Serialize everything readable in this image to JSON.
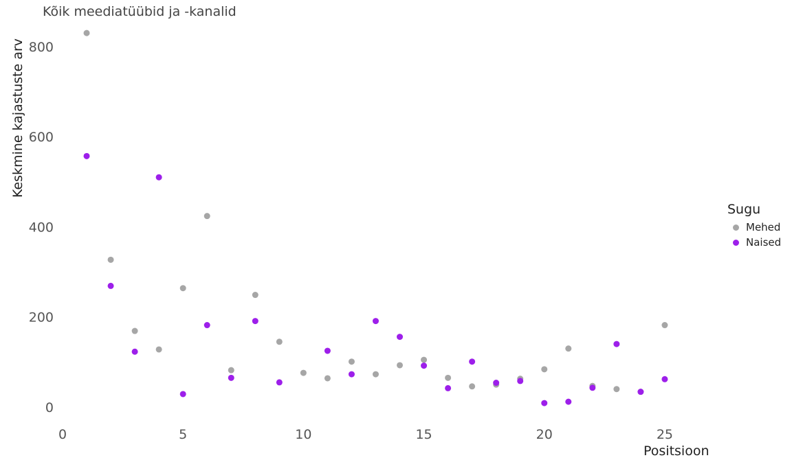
{
  "chart_data": {
    "type": "scatter",
    "title": "Kõik meediatüübid ja -kanalid",
    "xlabel": "Positsioon",
    "ylabel": "Keskmine kajastuste arv",
    "xlim": [
      0,
      27
    ],
    "ylim": [
      0,
      850
    ],
    "x_ticks": [
      0,
      5,
      10,
      15,
      20,
      25
    ],
    "y_ticks": [
      0,
      200,
      400,
      600,
      800
    ],
    "grid": false,
    "legend": {
      "title": "Sugu",
      "placement": "right"
    },
    "series": [
      {
        "name": "Mehed",
        "color": "#a6a6a6",
        "x": [
          1,
          2,
          3,
          4,
          5,
          6,
          7,
          8,
          9,
          10,
          11,
          12,
          13,
          14,
          15,
          16,
          17,
          18,
          19,
          20,
          21,
          22,
          23,
          24,
          25
        ],
        "y": [
          830,
          327,
          169,
          128,
          264,
          424,
          82,
          249,
          145,
          76,
          64,
          101,
          73,
          93,
          105,
          65,
          46,
          50,
          63,
          84,
          130,
          47,
          40,
          34,
          182
        ]
      },
      {
        "name": "Naised",
        "color": "#9d1fea",
        "x": [
          1,
          2,
          3,
          4,
          5,
          6,
          7,
          8,
          9,
          11,
          12,
          13,
          14,
          15,
          16,
          17,
          18,
          19,
          20,
          21,
          22,
          23,
          24,
          25
        ],
        "y": [
          557,
          269,
          123,
          510,
          29,
          182,
          65,
          191,
          55,
          125,
          73,
          191,
          156,
          92,
          42,
          101,
          54,
          58,
          9,
          12,
          43,
          140,
          34,
          62
        ]
      }
    ]
  }
}
